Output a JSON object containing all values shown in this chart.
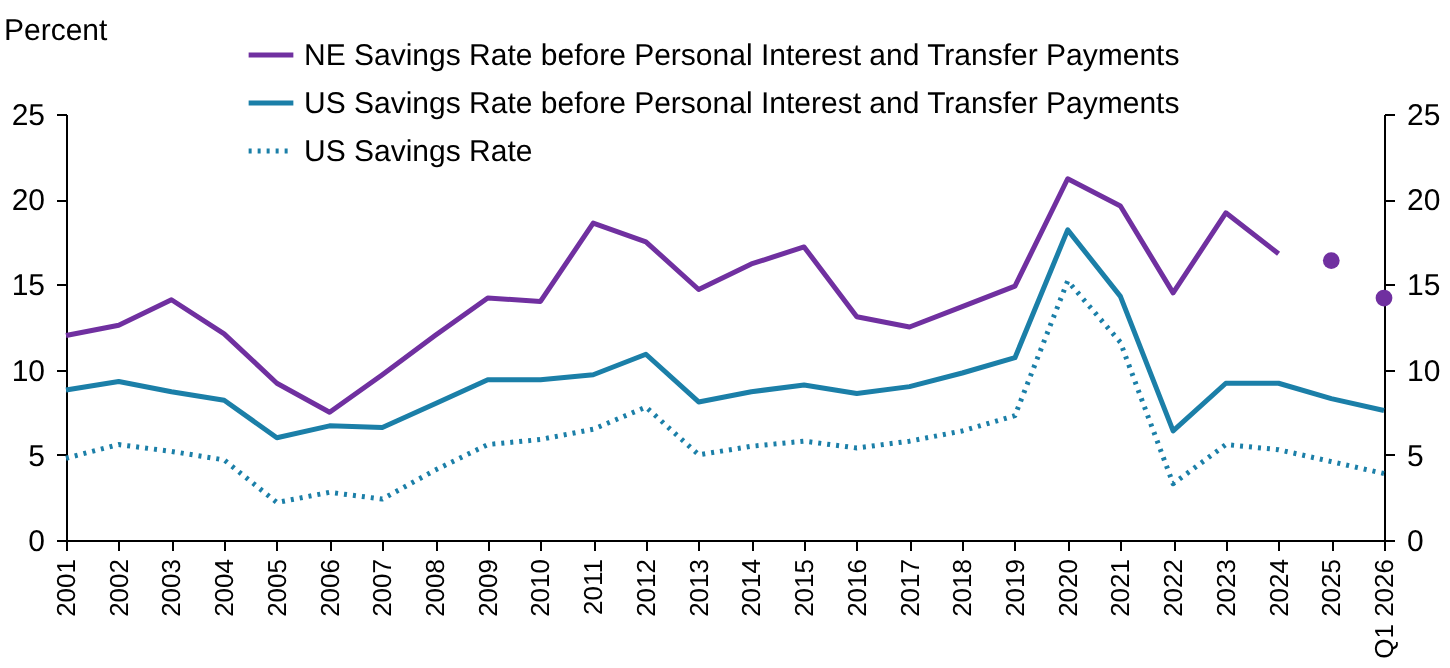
{
  "chart_data": {
    "type": "line",
    "ylabel": "Percent",
    "categories": [
      "2001",
      "2002",
      "2003",
      "2004",
      "2005",
      "2006",
      "2007",
      "2008",
      "2009",
      "2010",
      "2011",
      "2012",
      "2013",
      "2014",
      "2015",
      "2016",
      "2017",
      "2018",
      "2019",
      "2020",
      "2021",
      "2022",
      "2023",
      "2024",
      "2025",
      "Q1 2026"
    ],
    "ylim": [
      0,
      25
    ],
    "yticks": [
      0,
      5,
      10,
      15,
      20,
      25
    ],
    "y2lim": [
      0,
      25
    ],
    "y2ticks": [
      0,
      5,
      10,
      15,
      20,
      25
    ],
    "legend": "top",
    "grid": false,
    "series": [
      {
        "name": "NE Savings Rate before Personal Interest and Transfer Payments",
        "color": "#7030a0",
        "line_style": "solid",
        "marker": "none",
        "values": [
          12.0,
          12.6,
          14.1,
          12.1,
          9.2,
          7.5,
          9.7,
          12.0,
          14.2,
          14.0,
          18.6,
          17.5,
          14.7,
          16.2,
          17.2,
          13.1,
          12.5,
          13.7,
          14.9,
          21.2,
          19.6,
          14.5,
          19.2,
          16.8,
          null,
          null
        ]
      },
      {
        "name": "US Savings Rate before Personal Interest and Transfer Payments",
        "color": "#1b7fa8",
        "line_style": "solid",
        "marker": "none",
        "values": [
          8.8,
          9.3,
          8.7,
          8.2,
          6.0,
          6.7,
          6.6,
          8.0,
          9.4,
          9.4,
          9.7,
          10.9,
          8.1,
          8.7,
          9.1,
          8.6,
          9.0,
          9.8,
          10.7,
          18.2,
          14.3,
          6.4,
          9.2,
          9.2,
          8.3,
          7.6
        ]
      },
      {
        "name": "US Savings Rate",
        "color": "#1b7fa8",
        "line_style": "dotted",
        "marker": "none",
        "values": [
          4.8,
          5.6,
          5.2,
          4.7,
          2.2,
          2.8,
          2.4,
          4.1,
          5.6,
          5.9,
          6.5,
          7.8,
          5.0,
          5.5,
          5.8,
          5.4,
          5.8,
          6.4,
          7.3,
          15.2,
          11.6,
          3.3,
          5.6,
          5.3,
          4.6,
          3.9
        ]
      },
      {
        "type": "scatter",
        "color": "#7030a0",
        "marker": "circle",
        "values": [
          null,
          null,
          null,
          null,
          null,
          null,
          null,
          null,
          null,
          null,
          null,
          null,
          null,
          null,
          null,
          null,
          null,
          null,
          null,
          null,
          null,
          null,
          null,
          null,
          16.4,
          14.2
        ]
      }
    ]
  }
}
